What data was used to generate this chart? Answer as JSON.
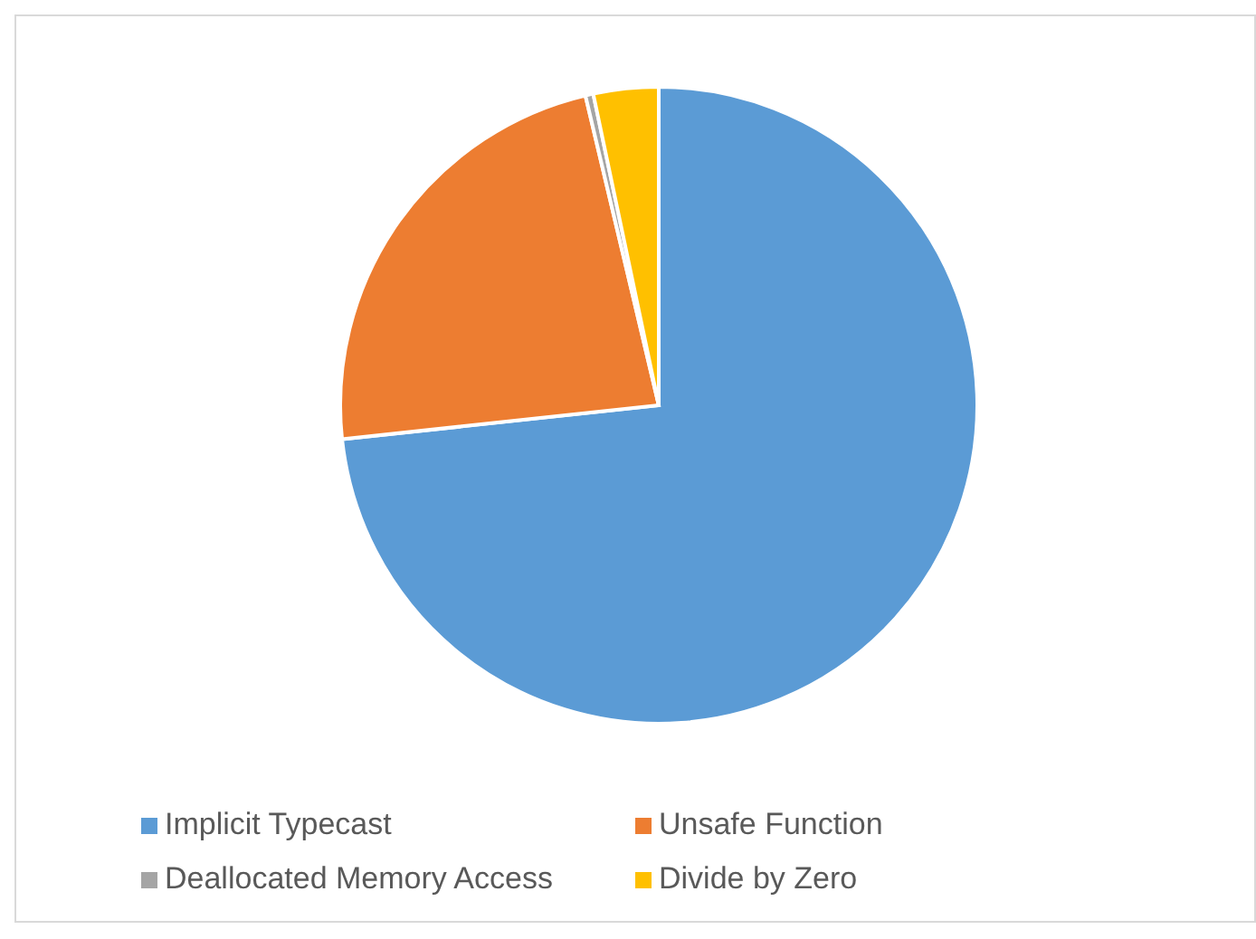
{
  "chart_data": {
    "type": "pie",
    "categories": [
      "Implicit Typecast",
      "Unsafe Function",
      "Deallocated Memory Access",
      "Divide by Zero"
    ],
    "values": [
      73.3,
      23.0,
      0.4,
      3.3
    ],
    "colors": [
      "#5b9bd5",
      "#ed7d31",
      "#a5a5a5",
      "#ffc000"
    ],
    "legend": "bottom"
  }
}
